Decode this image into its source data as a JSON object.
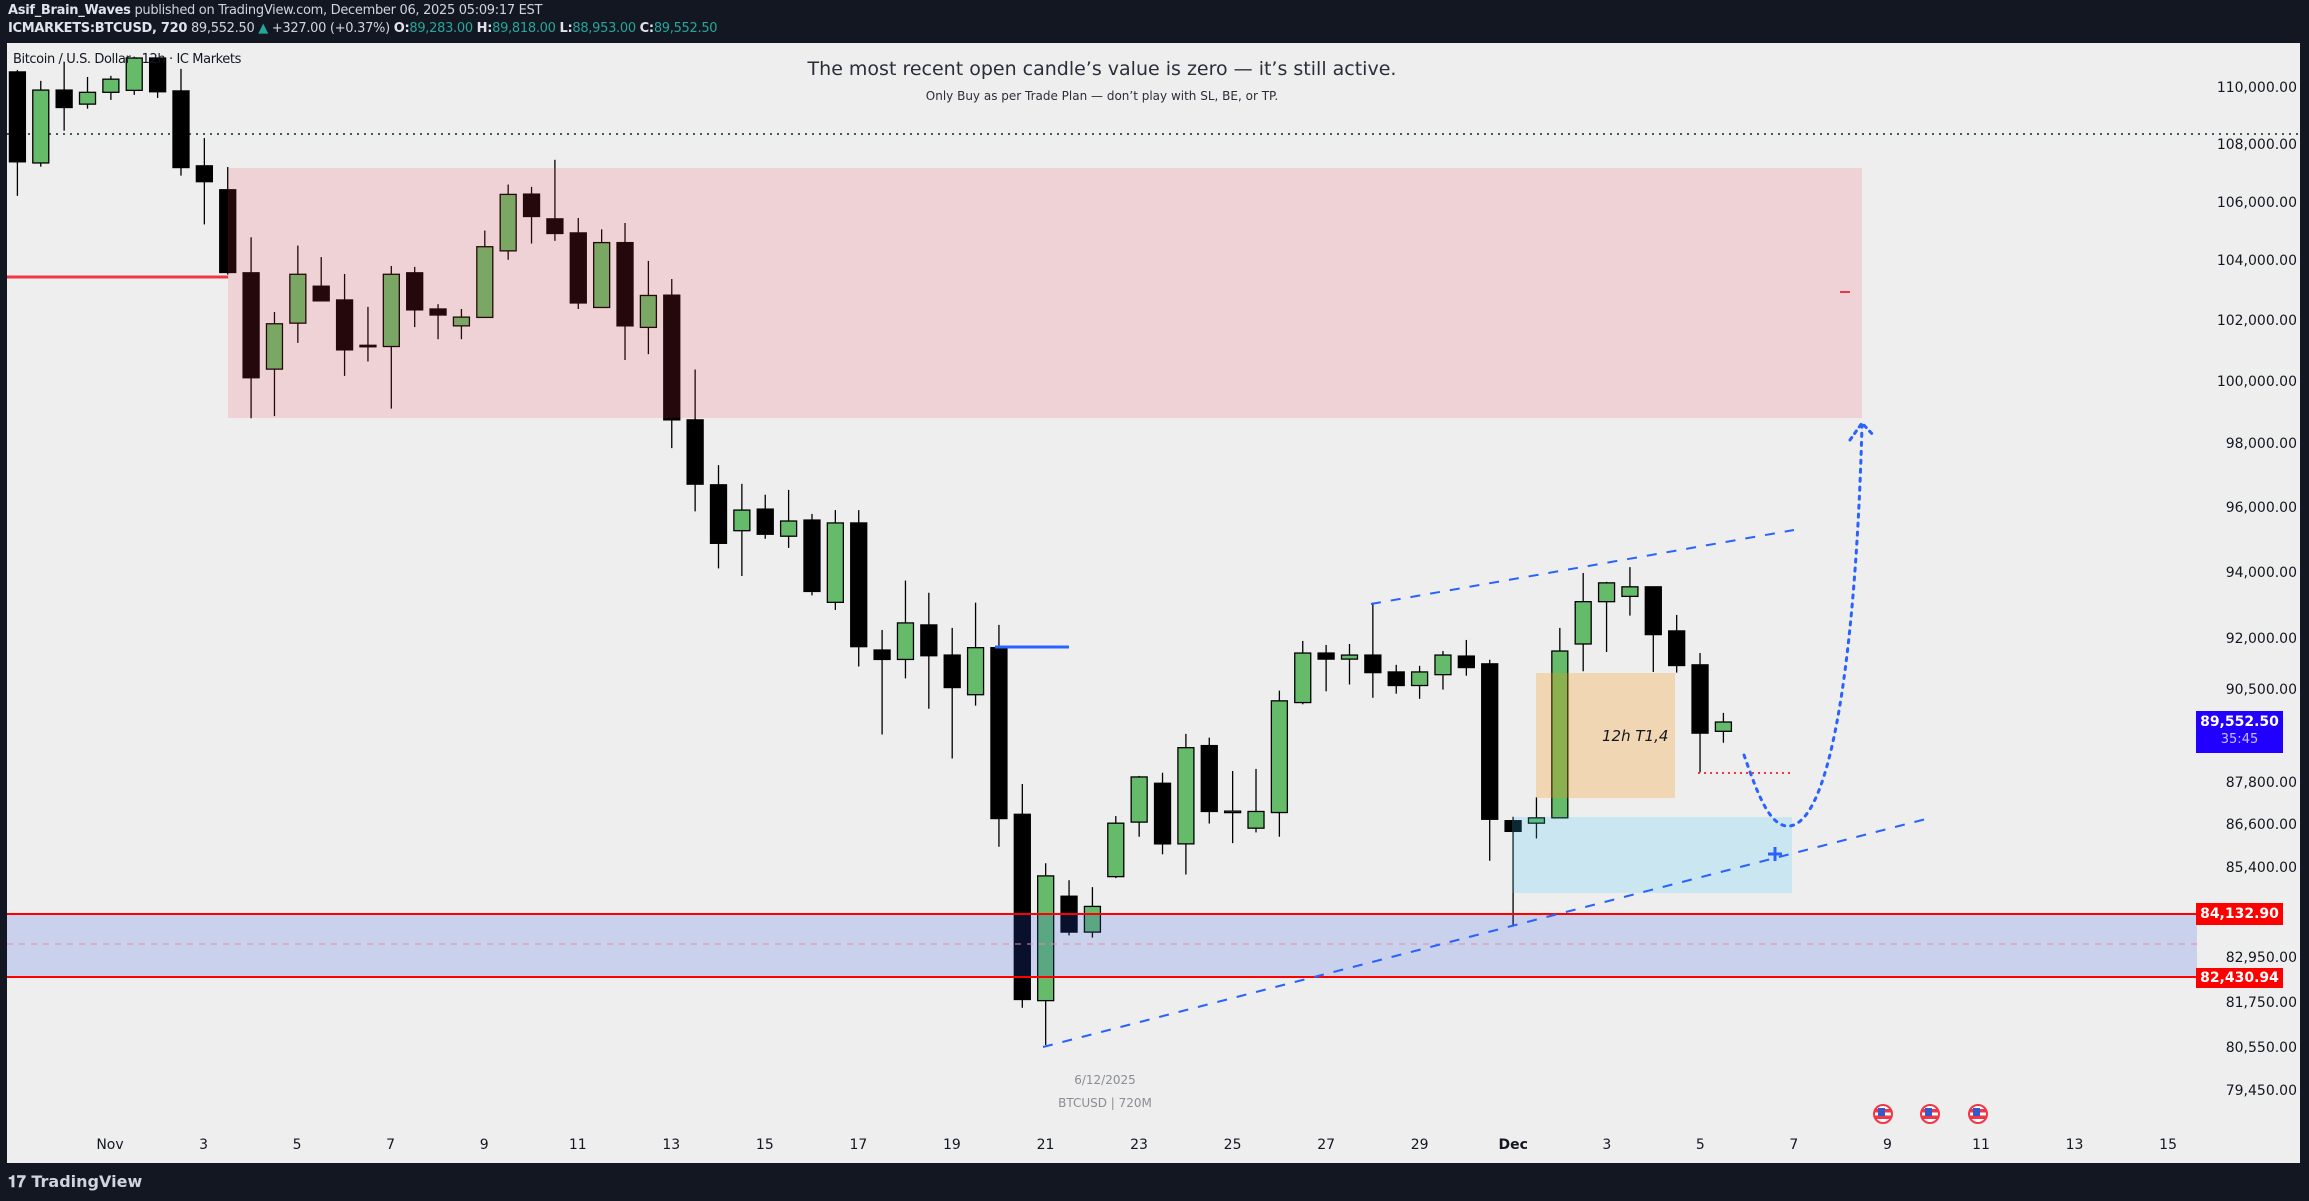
{
  "header": {
    "author": "Asif_Brain_Waves",
    "published": "published on TradingView.com, December 06, 2025 05:09:17 EST",
    "symbol": "ICMARKETS:BTCUSD, 720",
    "last": "89,552.50",
    "change": "+327.00 (+0.37%)",
    "o_label": "O:",
    "o": "89,283.00",
    "h_label": "H:",
    "h": "89,818.00",
    "l_label": "L:",
    "l": "88,953.00",
    "c_label": "C:",
    "c": "89,552.50"
  },
  "legend": "Bitcoin / U.S. Dollar · 12h · IC Markets",
  "annotation": {
    "line1": "The most recent open candle’s value is zero — it’s still active.",
    "line2": "Only Buy as per Trade Plan — don’t play with SL, BE, or TP.",
    "box_label": "12h T1,4",
    "watermark_date": "6/12/2025",
    "watermark_symbol": "BTCUSD | 720M"
  },
  "price_axis": {
    "scale": "log",
    "ticks": [
      "110,000.00",
      "108,000.00",
      "106,000.00",
      "104,000.00",
      "102,000.00",
      "100,000.00",
      "98,000.00",
      "96,000.00",
      "94,000.00",
      "92,000.00",
      "90,500.00",
      "87,800.00",
      "86,600.00",
      "85,400.00",
      "82,950.00",
      "81,750.00",
      "80,550.00",
      "79,450.00"
    ],
    "current_price": "89,552.50",
    "countdown": "35:45",
    "level_upper": "84,132.90",
    "level_lower": "82,430.94"
  },
  "time_axis": {
    "labels": [
      "Nov",
      "3",
      "5",
      "7",
      "9",
      "11",
      "13",
      "15",
      "17",
      "19",
      "21",
      "23",
      "25",
      "27",
      "29",
      "Dec",
      "3",
      "5",
      "7",
      "9",
      "11",
      "13",
      "15"
    ],
    "bold": [
      "Nov",
      "Dec"
    ]
  },
  "colors": {
    "bull": "#66bb6a",
    "bear": "#000000",
    "current_price_bg": "#2200ff",
    "level_bg": "#ff0000",
    "supply_zone": "#f7354926",
    "demand_zone": "#2a54e630",
    "target_box": "#f68e0040",
    "entry_box": "#3ac6f833"
  },
  "chart_data": {
    "type": "candlestick",
    "interval": "12h",
    "first_candle": "Oct 30 2025 00:00",
    "ohlc": [
      [
        110590,
        110660,
        106230,
        107410
      ],
      [
        107370,
        110270,
        107240,
        109940
      ],
      [
        109940,
        110960,
        108500,
        109320
      ],
      [
        109440,
        110410,
        109280,
        109860
      ],
      [
        109860,
        110450,
        109590,
        110330
      ],
      [
        109930,
        111140,
        109770,
        111090
      ],
      [
        111090,
        111100,
        109660,
        109880
      ],
      [
        109910,
        110700,
        106930,
        107210
      ],
      [
        107270,
        108240,
        105250,
        106720
      ],
      [
        106440,
        107230,
        103550,
        103620
      ],
      [
        103610,
        104810,
        98830,
        100140
      ],
      [
        100420,
        102300,
        98900,
        101910
      ],
      [
        101930,
        104530,
        101280,
        103560
      ],
      [
        103160,
        104140,
        102670,
        102670
      ],
      [
        102700,
        103570,
        100200,
        101050
      ],
      [
        101200,
        102470,
        100670,
        101180
      ],
      [
        101160,
        103840,
        99140,
        103560
      ],
      [
        103610,
        103810,
        101800,
        102370
      ],
      [
        102400,
        102560,
        101400,
        102200
      ],
      [
        101840,
        102400,
        101400,
        102130
      ],
      [
        102120,
        105040,
        102120,
        104490
      ],
      [
        104350,
        106620,
        104050,
        106280
      ],
      [
        106290,
        106540,
        104600,
        105520
      ],
      [
        105440,
        107480,
        104690,
        104940
      ],
      [
        104960,
        105470,
        102400,
        102600
      ],
      [
        102450,
        105080,
        102450,
        104630
      ],
      [
        104630,
        105300,
        100720,
        101840
      ],
      [
        101790,
        104010,
        100910,
        102850
      ],
      [
        102860,
        103400,
        97880,
        98780
      ],
      [
        98780,
        100410,
        95890,
        96740
      ],
      [
        96720,
        97340,
        94130,
        94900
      ],
      [
        95290,
        96750,
        93900,
        95930
      ],
      [
        95960,
        96410,
        95040,
        95180
      ],
      [
        95120,
        96560,
        94760,
        95590
      ],
      [
        95620,
        95810,
        93310,
        93430
      ],
      [
        93100,
        95930,
        92870,
        95530
      ],
      [
        95530,
        95930,
        91180,
        91770
      ],
      [
        91670,
        92270,
        89190,
        91390
      ],
      [
        91390,
        93760,
        90830,
        92480
      ],
      [
        92420,
        93390,
        89940,
        91500
      ],
      [
        91520,
        92330,
        88500,
        90560
      ],
      [
        90350,
        93090,
        90030,
        91740
      ],
      [
        91740,
        92420,
        86000,
        86790
      ],
      [
        86910,
        87770,
        81620,
        81840
      ],
      [
        81810,
        85540,
        80640,
        85190
      ],
      [
        84630,
        85070,
        83560,
        83650
      ],
      [
        83650,
        84880,
        83500,
        84350
      ],
      [
        85170,
        86860,
        85130,
        86660
      ],
      [
        86690,
        88000,
        86280,
        87970
      ],
      [
        87790,
        88090,
        85790,
        86080
      ],
      [
        86080,
        89210,
        85230,
        88810
      ],
      [
        88870,
        89100,
        86650,
        86990
      ],
      [
        86990,
        88140,
        86100,
        87000
      ],
      [
        86520,
        88200,
        86400,
        86990
      ],
      [
        86960,
        90470,
        86280,
        90170
      ],
      [
        90120,
        91940,
        90070,
        91580
      ],
      [
        91580,
        91820,
        90450,
        91400
      ],
      [
        91400,
        91850,
        90650,
        91520
      ],
      [
        91520,
        93090,
        90260,
        91000
      ],
      [
        91020,
        91230,
        90380,
        90620
      ],
      [
        90620,
        91200,
        90230,
        91020
      ],
      [
        90940,
        91640,
        90500,
        91520
      ],
      [
        91490,
        91970,
        90910,
        91150
      ],
      [
        91260,
        91380,
        85610,
        86770
      ],
      [
        86730,
        86840,
        83800,
        86430
      ],
      [
        86660,
        87390,
        86230,
        86810
      ],
      [
        86810,
        92330,
        86810,
        91640
      ],
      [
        91850,
        93990,
        91040,
        93120
      ],
      [
        93120,
        93720,
        91610,
        93690
      ],
      [
        93280,
        94170,
        92700,
        93570
      ],
      [
        93570,
        93570,
        91020,
        92130
      ],
      [
        92240,
        92720,
        91000,
        91210
      ],
      [
        91230,
        91580,
        88100,
        89230
      ],
      [
        89283,
        89818,
        88953,
        89552.5
      ]
    ]
  },
  "footer": {
    "brand": "TradingView"
  }
}
